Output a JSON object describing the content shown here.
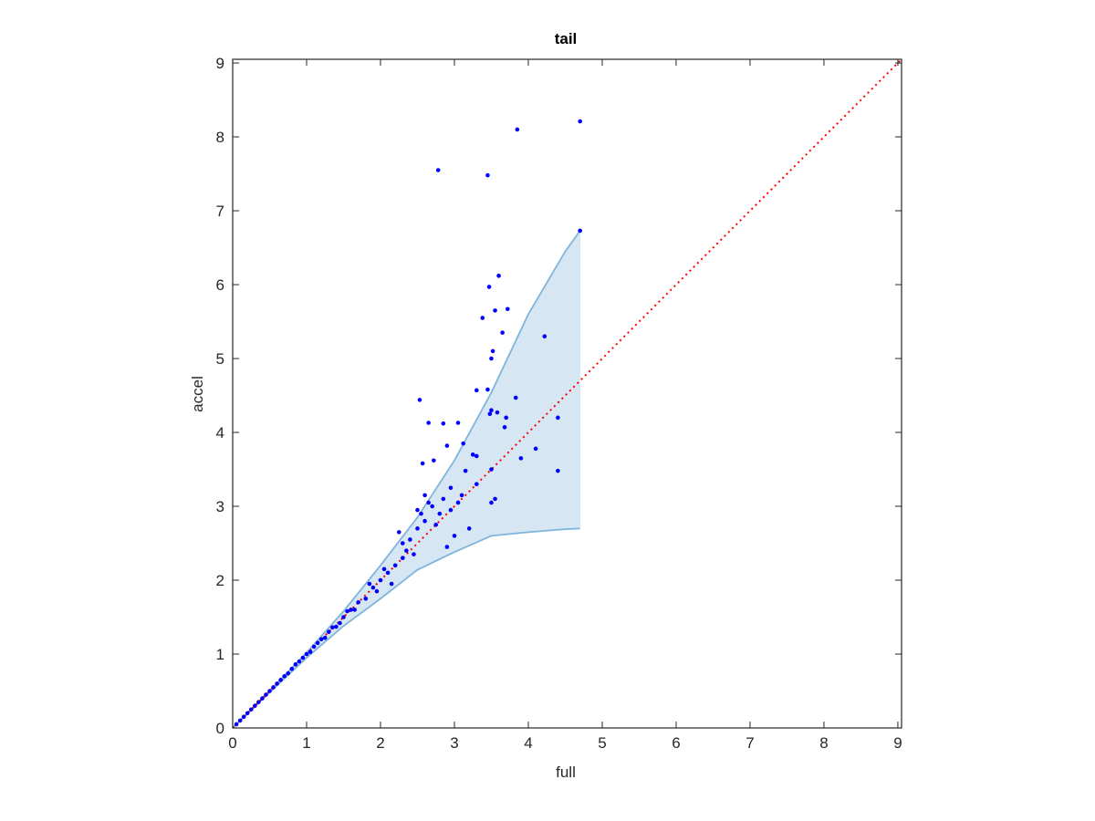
{
  "chart_data": {
    "type": "scatter",
    "title": "tail",
    "x_label": "full",
    "y_label": "accel",
    "xlim": [
      0,
      9.05
    ],
    "ylim": [
      0,
      9.05
    ],
    "xticks": [
      0,
      1,
      2,
      3,
      4,
      5,
      6,
      7,
      8,
      9
    ],
    "yticks": [
      0,
      1,
      2,
      3,
      4,
      5,
      6,
      7,
      8,
      9
    ],
    "band": {
      "x": [
        0,
        0.5,
        1,
        1.5,
        2,
        2.5,
        3,
        3.5,
        4,
        4.5,
        4.7
      ],
      "upper": [
        0,
        0.5,
        1.02,
        1.58,
        2.2,
        2.85,
        3.62,
        4.54,
        5.6,
        6.45,
        6.73
      ],
      "lower": [
        0,
        0.48,
        0.95,
        1.38,
        1.75,
        2.14,
        2.38,
        2.6,
        2.65,
        2.69,
        2.7
      ],
      "color": "#7fb5dc",
      "fill": "#d6e6f3"
    },
    "reference_line": {
      "x": [
        0,
        9.05
      ],
      "y": [
        0,
        9.05
      ],
      "color": "#ff0000"
    },
    "series": [
      {
        "color": "#0000ff",
        "x": [
          4.7,
          3.85,
          2.78,
          3.45,
          4.7,
          3.6,
          3.47,
          3.55,
          3.72,
          3.38,
          3.65,
          4.22,
          3.52,
          3.5,
          3.83,
          2.53,
          3.3,
          3.45,
          3.5,
          3.48,
          3.58,
          3.7,
          4.4,
          2.65,
          2.85,
          3.05,
          3.68,
          3.12,
          4.1,
          2.9,
          3.9,
          3.25,
          3.3,
          2.57,
          2.72,
          3.15,
          3.5,
          4.4,
          3.3,
          3.55,
          3.5,
          2.95,
          3.1,
          2.7,
          2.8,
          2.6,
          2.5,
          2.9,
          3.2,
          3.0,
          2.4,
          2.3,
          2.45,
          2.2,
          2.1,
          2.0,
          2.15,
          1.9,
          1.8,
          1.7,
          1.6,
          1.5,
          1.4,
          1.3,
          1.2,
          1.1,
          1.0,
          0.9,
          0.8,
          0.7,
          0.6,
          0.5,
          0.4,
          0.3,
          0.2,
          0.1,
          0.05,
          2.25,
          2.35,
          2.55,
          2.65,
          2.75,
          2.85,
          2.95,
          3.05,
          2.6,
          2.5,
          2.3,
          1.85,
          2.05,
          1.95,
          1.65,
          1.55,
          1.45,
          1.35,
          1.25,
          1.15,
          1.05,
          0.95,
          0.85,
          0.75,
          0.65,
          0.55,
          0.45,
          0.35,
          0.25,
          0.15
        ],
        "y": [
          8.21,
          8.1,
          7.55,
          7.48,
          6.73,
          6.12,
          5.97,
          5.65,
          5.67,
          5.55,
          5.35,
          5.3,
          5.1,
          5.0,
          4.47,
          4.44,
          4.57,
          4.58,
          4.3,
          4.25,
          4.27,
          4.2,
          4.2,
          4.13,
          4.12,
          4.13,
          4.07,
          3.85,
          3.78,
          3.82,
          3.65,
          3.7,
          3.68,
          3.58,
          3.62,
          3.48,
          3.5,
          3.48,
          3.3,
          3.1,
          3.05,
          3.25,
          3.15,
          3.0,
          2.9,
          2.8,
          2.7,
          2.45,
          2.7,
          2.6,
          2.55,
          2.5,
          2.35,
          2.2,
          2.1,
          2.0,
          1.95,
          1.9,
          1.75,
          1.7,
          1.6,
          1.5,
          1.37,
          1.3,
          1.2,
          1.1,
          1.0,
          0.9,
          0.8,
          0.7,
          0.6,
          0.5,
          0.4,
          0.3,
          0.2,
          0.1,
          0.05,
          2.65,
          2.4,
          2.9,
          3.05,
          2.75,
          3.1,
          2.95,
          3.05,
          3.15,
          2.95,
          2.3,
          1.95,
          2.15,
          1.85,
          1.6,
          1.58,
          1.42,
          1.36,
          1.22,
          1.15,
          1.03,
          0.95,
          0.86,
          0.74,
          0.65,
          0.55,
          0.45,
          0.35,
          0.25,
          0.15
        ]
      }
    ]
  }
}
